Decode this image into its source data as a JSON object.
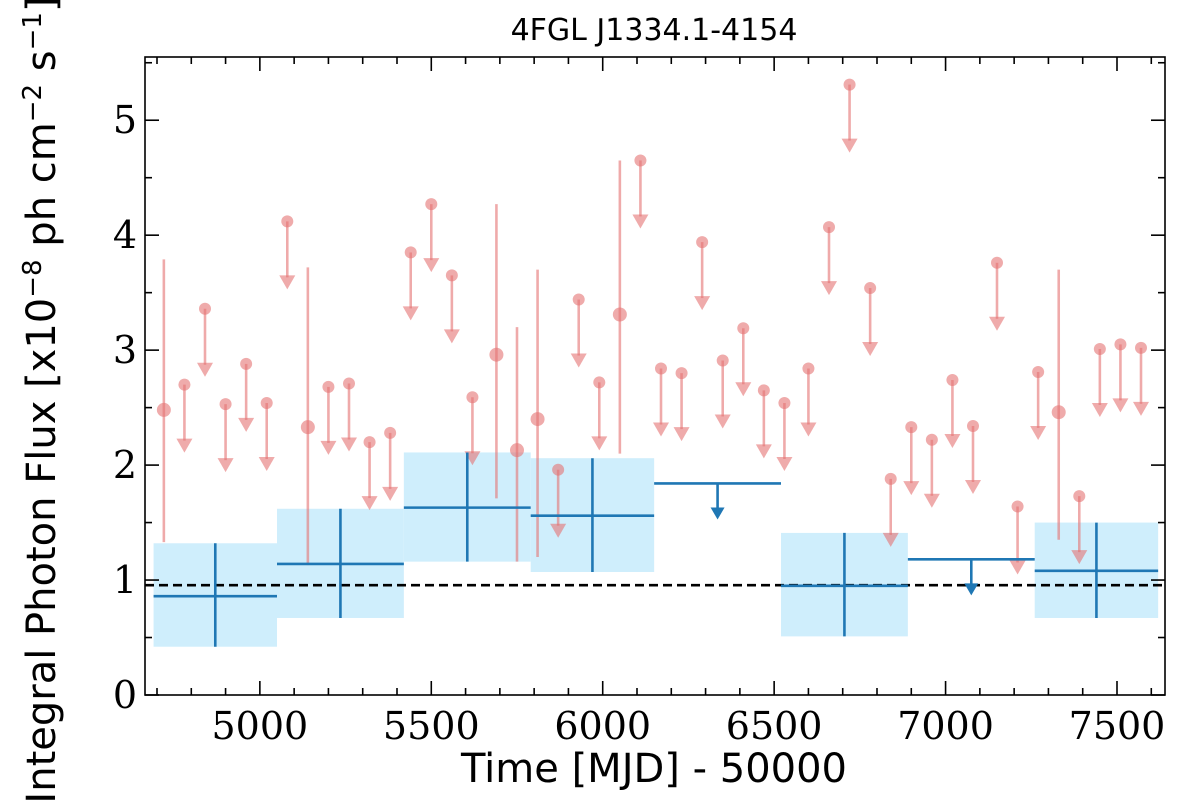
{
  "chart_data": {
    "type": "scatter",
    "title": "4FGL J1334.1-4154",
    "xlabel": "Time [MJD] - 50000",
    "ylabel_parts": [
      "Integral Photon Flux [x10",
      "−8",
      " ph cm",
      "−2",
      " s",
      "−1",
      "]"
    ],
    "xlim": [
      4665,
      7640
    ],
    "ylim": [
      0,
      5.55
    ],
    "xticks": [
      5000,
      5500,
      6000,
      6500,
      7000,
      7500
    ],
    "yticks": [
      0,
      1,
      2,
      3,
      4,
      5
    ],
    "reference_line": {
      "y": 0.955,
      "style": "dashed",
      "color": "#000000"
    },
    "colors": {
      "short_bins": "#e57373",
      "long_bins": "#1f77b4",
      "band": "#cfeefc"
    },
    "short_bins_upper_limits": [
      {
        "x": 4780,
        "y": 2.7
      },
      {
        "x": 4840,
        "y": 3.36
      },
      {
        "x": 4900,
        "y": 2.53
      },
      {
        "x": 4960,
        "y": 2.88
      },
      {
        "x": 5020,
        "y": 2.54
      },
      {
        "x": 5080,
        "y": 4.12
      },
      {
        "x": 5200,
        "y": 2.68
      },
      {
        "x": 5260,
        "y": 2.71
      },
      {
        "x": 5320,
        "y": 2.2
      },
      {
        "x": 5380,
        "y": 2.28
      },
      {
        "x": 5440,
        "y": 3.85
      },
      {
        "x": 5500,
        "y": 4.27
      },
      {
        "x": 5560,
        "y": 3.65
      },
      {
        "x": 5620,
        "y": 2.59
      },
      {
        "x": 5870,
        "y": 1.96
      },
      {
        "x": 5930,
        "y": 3.44
      },
      {
        "x": 5990,
        "y": 2.72
      },
      {
        "x": 6110,
        "y": 4.65
      },
      {
        "x": 6170,
        "y": 2.84
      },
      {
        "x": 6230,
        "y": 2.8
      },
      {
        "x": 6290,
        "y": 3.94
      },
      {
        "x": 6350,
        "y": 2.91
      },
      {
        "x": 6410,
        "y": 3.19
      },
      {
        "x": 6470,
        "y": 2.65
      },
      {
        "x": 6530,
        "y": 2.54
      },
      {
        "x": 6600,
        "y": 2.84
      },
      {
        "x": 6660,
        "y": 4.07
      },
      {
        "x": 6720,
        "y": 5.31
      },
      {
        "x": 6780,
        "y": 3.54
      },
      {
        "x": 6840,
        "y": 1.88
      },
      {
        "x": 6900,
        "y": 2.33
      },
      {
        "x": 6960,
        "y": 2.22
      },
      {
        "x": 7020,
        "y": 2.74
      },
      {
        "x": 7080,
        "y": 2.34
      },
      {
        "x": 7150,
        "y": 3.76
      },
      {
        "x": 7210,
        "y": 1.64
      },
      {
        "x": 7270,
        "y": 2.81
      },
      {
        "x": 7390,
        "y": 1.73
      },
      {
        "x": 7450,
        "y": 3.01
      },
      {
        "x": 7510,
        "y": 3.05
      },
      {
        "x": 7570,
        "y": 3.02
      }
    ],
    "short_bins_detections": [
      {
        "x": 4720,
        "y": 2.48,
        "ylow": 1.33,
        "yhigh": 3.79
      },
      {
        "x": 5140,
        "y": 2.33,
        "ylow": 1.13,
        "yhigh": 3.72
      },
      {
        "x": 5690,
        "y": 2.96,
        "ylow": 1.71,
        "yhigh": 4.27
      },
      {
        "x": 5750,
        "y": 2.13,
        "ylow": 1.16,
        "yhigh": 3.2
      },
      {
        "x": 5810,
        "y": 2.4,
        "ylow": 1.2,
        "yhigh": 3.7
      },
      {
        "x": 6050,
        "y": 3.31,
        "ylow": 2.1,
        "yhigh": 4.65
      },
      {
        "x": 7330,
        "y": 2.46,
        "ylow": 1.35,
        "yhigh": 3.7
      }
    ],
    "long_bins_detections": [
      {
        "x0": 4690,
        "x1": 5050,
        "y": 0.86,
        "ylow": 0.42,
        "yhigh": 1.32
      },
      {
        "x0": 5050,
        "x1": 5420,
        "y": 1.14,
        "ylow": 0.67,
        "yhigh": 1.62
      },
      {
        "x0": 5420,
        "x1": 5790,
        "y": 1.63,
        "ylow": 1.16,
        "yhigh": 2.11
      },
      {
        "x0": 5790,
        "x1": 6150,
        "y": 1.56,
        "ylow": 1.07,
        "yhigh": 2.06
      },
      {
        "x0": 6520,
        "x1": 6890,
        "y": 0.95,
        "ylow": 0.51,
        "yhigh": 1.41
      },
      {
        "x0": 7260,
        "x1": 7620,
        "y": 1.08,
        "ylow": 0.67,
        "yhigh": 1.5
      }
    ],
    "long_bins_upper_limits": [
      {
        "x0": 6150,
        "x1": 6520,
        "y": 1.84
      },
      {
        "x0": 6890,
        "x1": 7260,
        "y": 1.18
      }
    ]
  }
}
